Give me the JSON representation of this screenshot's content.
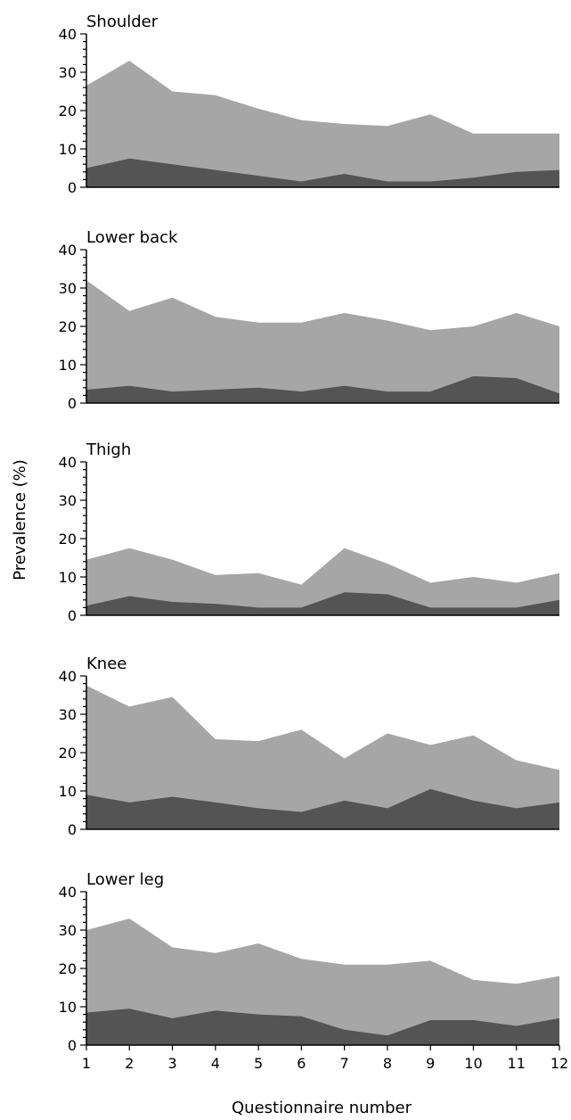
{
  "chart_data": {
    "type": "area",
    "ylabel": "Prevalence (%)",
    "xlabel": "Questionnaire number",
    "x": [
      1,
      2,
      3,
      4,
      5,
      6,
      7,
      8,
      9,
      10,
      11,
      12
    ],
    "ylim": [
      0,
      40
    ],
    "yticks": [
      0,
      10,
      20,
      30,
      40
    ],
    "grid": false,
    "colors": {
      "outer": "#a6a6a6",
      "inner": "#545454"
    },
    "panels": [
      {
        "title": "Shoulder",
        "series": [
          {
            "values": [
              26.5,
              33,
              25,
              24,
              20.5,
              17.5,
              16.5,
              16,
              19,
              14,
              14,
              14
            ]
          },
          {
            "values": [
              5,
              7.5,
              6,
              4.5,
              3,
              1.5,
              3.5,
              1.5,
              1.5,
              2.5,
              4,
              4.5
            ]
          }
        ]
      },
      {
        "title": "Lower back",
        "series": [
          {
            "values": [
              32,
              24,
              27.5,
              22.5,
              21,
              21,
              23.5,
              21.5,
              19,
              20,
              23.5,
              20
            ]
          },
          {
            "values": [
              3.5,
              4.5,
              3,
              3.5,
              4,
              3,
              4.5,
              3,
              3,
              7,
              6.5,
              2.5
            ]
          }
        ]
      },
      {
        "title": "Thigh",
        "series": [
          {
            "values": [
              14.5,
              17.5,
              14.5,
              10.5,
              11,
              8,
              17.5,
              13.5,
              8.5,
              10,
              8.5,
              11
            ]
          },
          {
            "values": [
              2.5,
              5,
              3.5,
              3,
              2,
              2,
              6,
              5.5,
              2,
              2,
              2,
              4
            ]
          }
        ]
      },
      {
        "title": "Knee",
        "series": [
          {
            "values": [
              37.5,
              32,
              34.5,
              23.5,
              23,
              26,
              18.5,
              25,
              22,
              24.5,
              18,
              15.5
            ]
          },
          {
            "values": [
              9,
              7,
              8.5,
              7,
              5.5,
              4.5,
              7.5,
              5.5,
              10.5,
              7.5,
              5.5,
              7
            ]
          }
        ]
      },
      {
        "title": "Lower leg",
        "series": [
          {
            "values": [
              30,
              33,
              25.5,
              24,
              26.5,
              22.5,
              21,
              21,
              22,
              17,
              16,
              18
            ]
          },
          {
            "values": [
              8.5,
              9.5,
              7,
              9,
              8,
              7.5,
              4,
              2.5,
              6.5,
              6.5,
              5,
              7
            ]
          }
        ]
      }
    ]
  }
}
